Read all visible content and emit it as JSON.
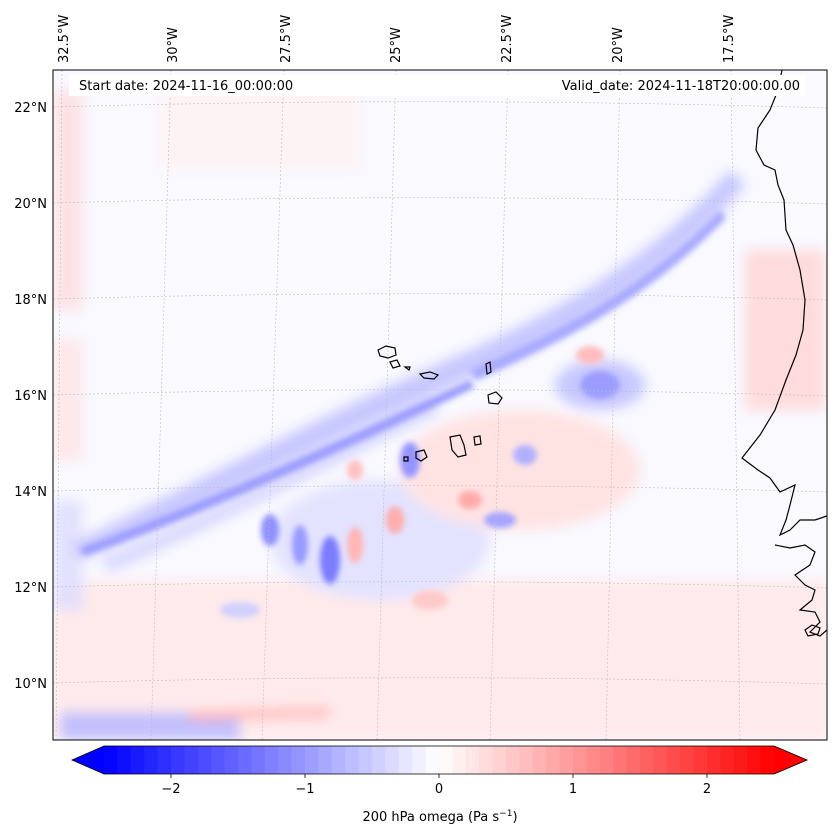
{
  "header": {
    "start_date": "Start date: 2024-11-16_00:00:00",
    "valid_date": "Valid_date: 2024-11-18T20:00:00.00"
  },
  "map": {
    "lon_labels": [
      "32.5°W",
      "30°W",
      "27.5°W",
      "25°W",
      "22.5°W",
      "20°W",
      "17.5°W"
    ],
    "lat_labels": [
      "22°N",
      "20°N",
      "18°N",
      "16°N",
      "14°N",
      "12°N",
      "10°N"
    ],
    "gridlines": true,
    "coastlines": true
  },
  "colorbar": {
    "cmap": "bwr",
    "colors": {
      "min": "#0000ff",
      "mid": "#ffffff",
      "max": "#ff0000"
    },
    "range": [
      -2.5,
      2.5
    ],
    "extend": "both",
    "tick_labels": [
      "−2",
      "−1",
      "0",
      "1",
      "2"
    ],
    "tick_values": [
      -2,
      -1,
      0,
      1,
      2
    ],
    "label": "200 hPa omega (Pa s"
  }
}
